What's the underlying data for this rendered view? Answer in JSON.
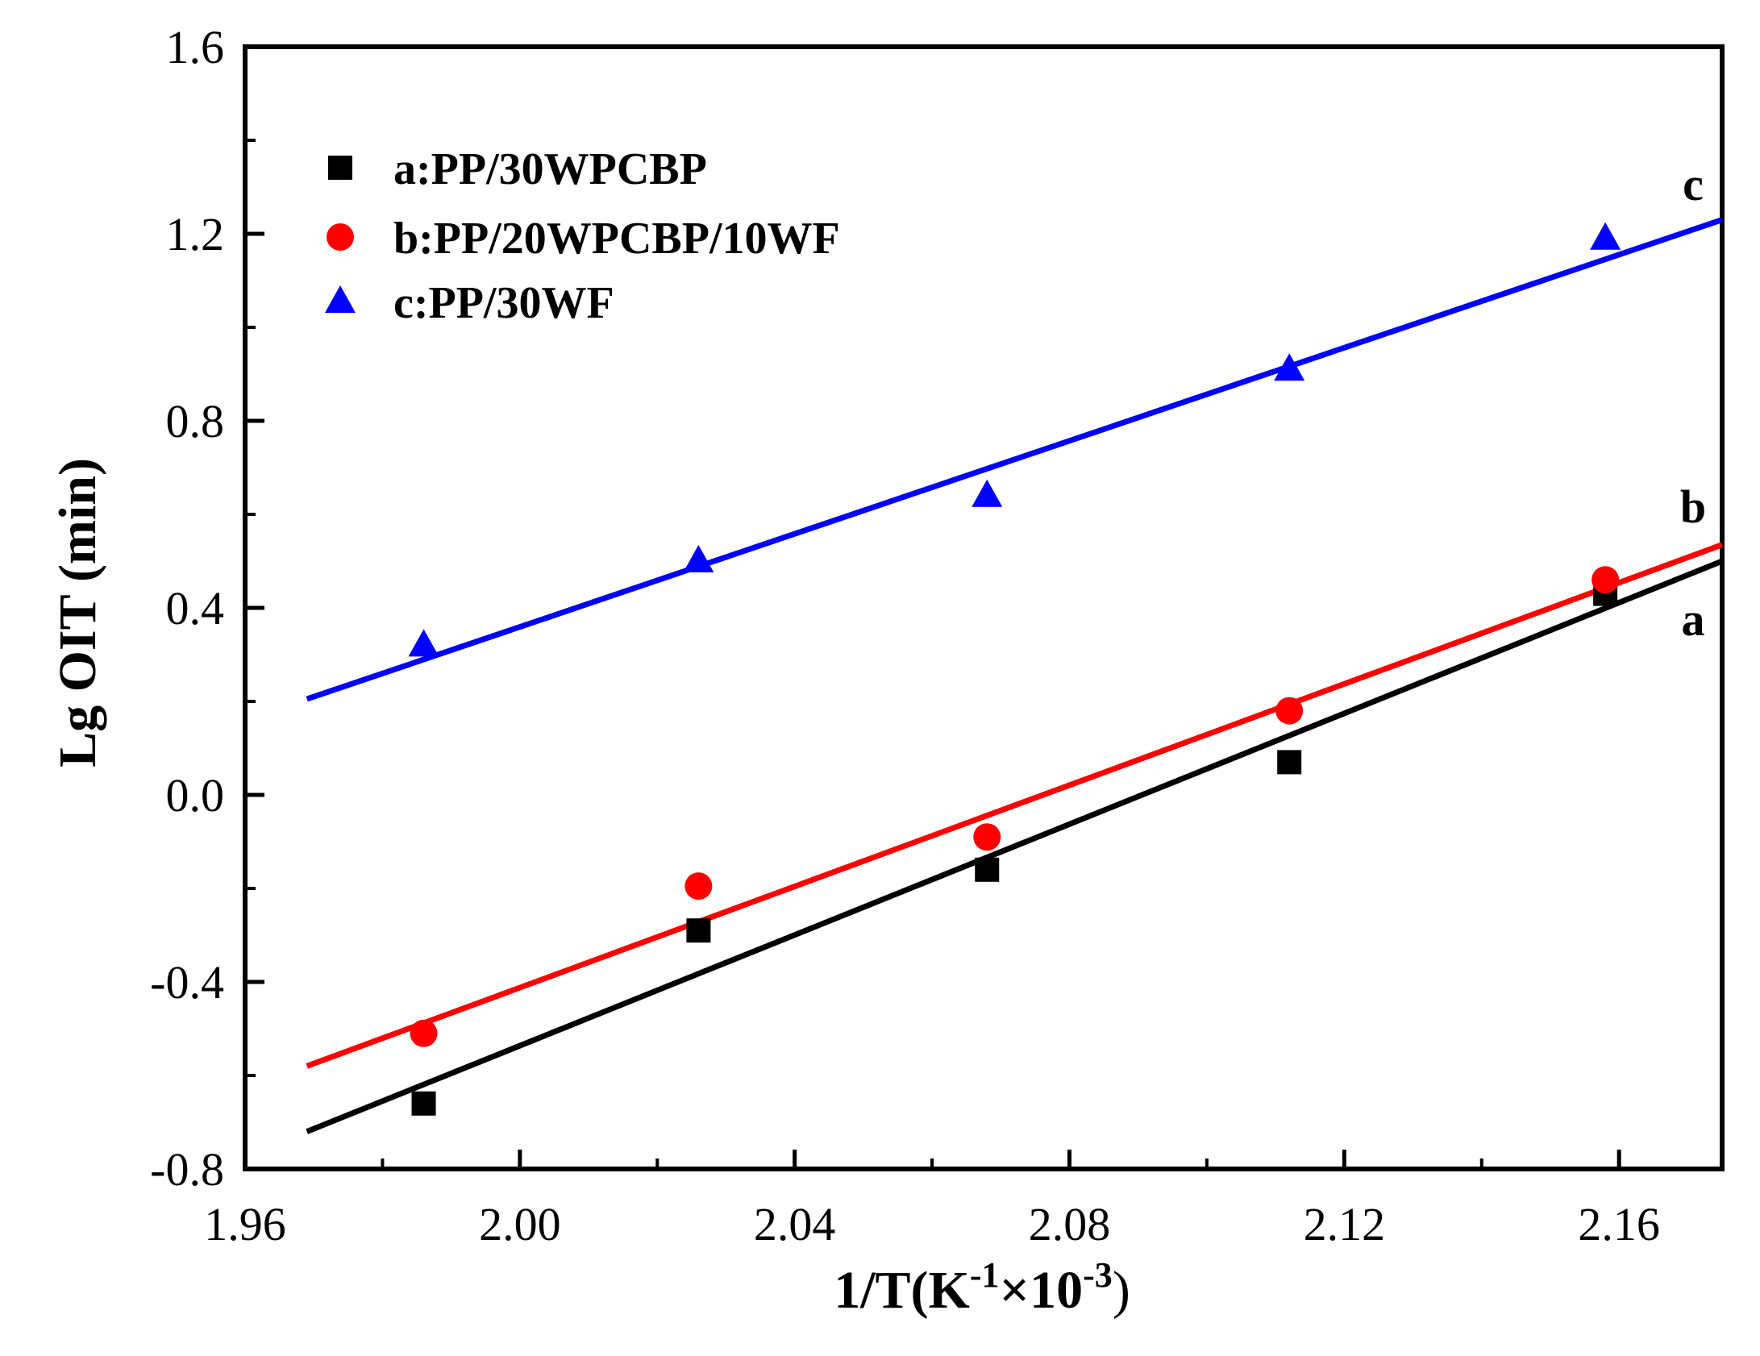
{
  "chart_data": {
    "type": "scatter",
    "title": "",
    "xlabel": "1/T(K",
    "xlabel_sup1": "-1",
    "xlabel_times": "×10",
    "xlabel_sup2": "-3",
    "xlabel_close": ")",
    "ylabel": "Lg OIT (min)",
    "xlim": [
      1.96,
      2.175
    ],
    "ylim": [
      -0.8,
      1.6
    ],
    "x_ticks": [
      "1.96",
      "2.00",
      "2.04",
      "2.08",
      "2.12",
      "2.16"
    ],
    "y_ticks": [
      "-0.8",
      "-0.4",
      "0.0",
      "0.4",
      "0.8",
      "1.2",
      "1.6"
    ],
    "legend_position": "top-left",
    "series": [
      {
        "name": "a:PP/30WPCBP",
        "tag": "a",
        "color": "#000000",
        "marker": "square",
        "x": [
          1.986,
          2.026,
          2.068,
          2.112,
          2.158
        ],
        "y": [
          -0.66,
          -0.29,
          -0.16,
          0.07,
          0.43
        ],
        "fit": {
          "x": [
            1.969,
            2.175
          ],
          "y": [
            -0.72,
            0.5
          ]
        }
      },
      {
        "name": "b:PP/20WPCBP/10WF",
        "tag": "b",
        "color": "#ff0000",
        "marker": "circle",
        "x": [
          1.986,
          2.026,
          2.068,
          2.112,
          2.158
        ],
        "y": [
          -0.51,
          -0.195,
          -0.09,
          0.18,
          0.46
        ],
        "fit": {
          "x": [
            1.969,
            2.175
          ],
          "y": [
            -0.58,
            0.535
          ]
        }
      },
      {
        "name": "c:PP/30WF",
        "tag": "c",
        "color": "#0000ff",
        "marker": "triangle",
        "x": [
          1.986,
          2.026,
          2.068,
          2.112,
          2.158
        ],
        "y": [
          0.32,
          0.5,
          0.64,
          0.91,
          1.19
        ],
        "fit": {
          "x": [
            1.969,
            2.175
          ],
          "y": [
            0.205,
            1.23
          ]
        }
      }
    ]
  }
}
